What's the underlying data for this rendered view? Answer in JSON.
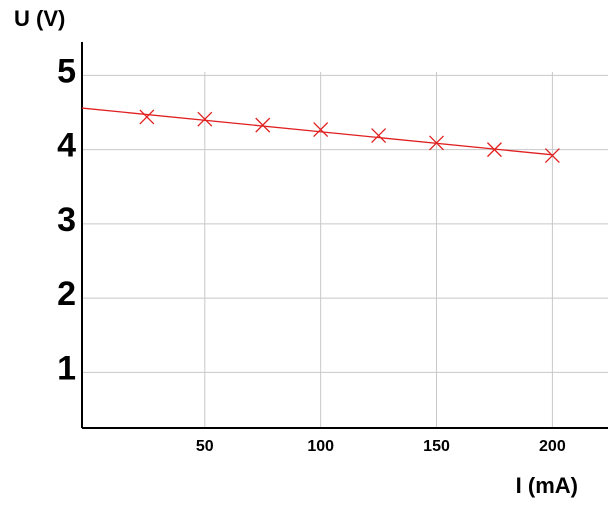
{
  "chart_data": {
    "type": "scatter",
    "x_label": "I (mA)",
    "y_label": "U (V)",
    "x": [
      25,
      50,
      75,
      100,
      125,
      150,
      175,
      200
    ],
    "series": [
      {
        "color": "#e02020",
        "values": [
          4.44,
          4.41,
          4.33,
          4.27,
          4.19,
          4.09,
          4.0,
          3.92
        ]
      }
    ],
    "fit_line": {
      "color": "#e02020",
      "x": [
        -3,
        200
      ],
      "y": [
        4.56,
        3.93
      ]
    },
    "xlim": [
      -3,
      224
    ],
    "ylim": [
      0.25,
      5.45
    ],
    "xticks": [
      50,
      100,
      150,
      200
    ],
    "yticks": [
      1,
      2,
      3,
      4,
      5
    ],
    "grid": true
  }
}
